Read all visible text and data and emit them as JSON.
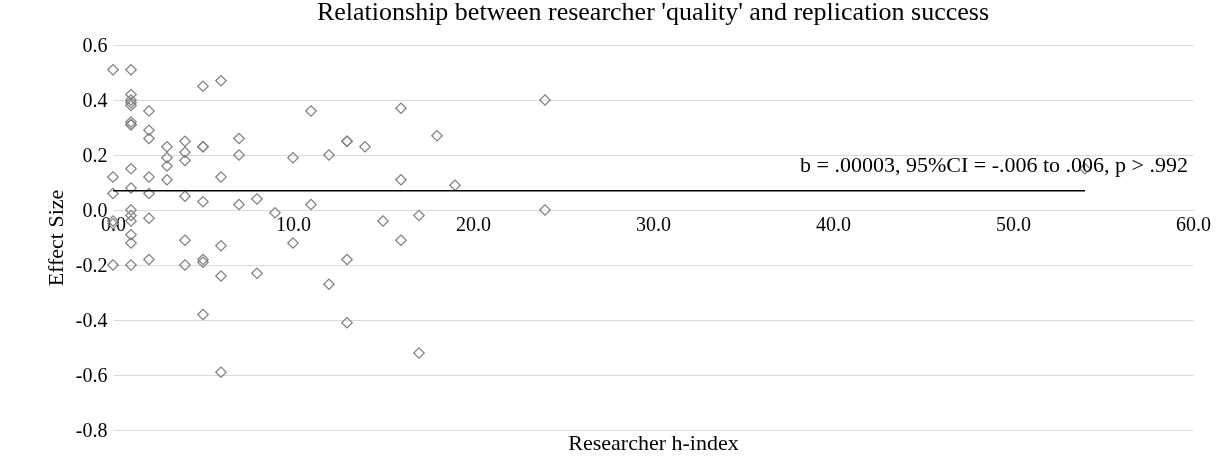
{
  "chart_data": {
    "type": "scatter",
    "title": "Relationship between researcher 'quality' and replication success",
    "xlabel": "Researcher h-index",
    "ylabel": "Effect Size",
    "xlim": [
      0,
      60
    ],
    "xticks": [
      {
        "value": 0,
        "label": "0.0"
      },
      {
        "value": 10,
        "label": "10.0"
      },
      {
        "value": 20,
        "label": "20.0"
      },
      {
        "value": 30,
        "label": "30.0"
      },
      {
        "value": 40,
        "label": "40.0"
      },
      {
        "value": 50,
        "label": "50.0"
      },
      {
        "value": 60,
        "label": "60.0"
      }
    ],
    "ylim": [
      -0.8,
      0.6
    ],
    "yticks": [
      {
        "value": -0.8,
        "label": "-0.8"
      },
      {
        "value": -0.6,
        "label": "-0.6"
      },
      {
        "value": -0.4,
        "label": "-0.4"
      },
      {
        "value": -0.2,
        "label": "-0.2"
      },
      {
        "value": 0,
        "label": "0.0"
      },
      {
        "value": 0.2,
        "label": "0.2"
      },
      {
        "value": 0.4,
        "label": "0.4"
      },
      {
        "value": 0.6,
        "label": "0.6"
      }
    ],
    "grid": "y",
    "annotations": [
      "b = .00003, 95%CI = -.006 to .006, p > .992"
    ],
    "series": [
      {
        "color": "#7f7f7f",
        "marker": "diamond",
        "x": [
          0,
          0,
          0,
          0,
          0,
          0,
          1,
          1,
          1,
          1,
          1,
          1,
          1,
          1,
          1,
          1,
          1,
          1,
          1,
          1,
          1,
          1,
          2,
          2,
          2,
          2,
          2,
          2,
          2,
          3,
          3,
          3,
          3,
          4,
          4,
          4,
          4,
          4,
          4,
          5,
          5,
          5,
          5,
          5,
          5,
          5,
          6,
          6,
          6,
          6,
          6,
          7,
          7,
          7,
          8,
          8,
          9,
          10,
          10,
          11,
          11,
          12,
          12,
          13,
          13,
          13,
          13,
          14,
          15,
          16,
          16,
          16,
          17,
          17,
          18,
          19,
          24,
          24,
          54
        ],
        "values": [
          0.51,
          0.12,
          0.06,
          -0.04,
          -0.05,
          -0.2,
          0.51,
          0.42,
          0.4,
          0.39,
          0.38,
          0.32,
          0.31,
          0.15,
          0.08,
          0.0,
          -0.02,
          -0.04,
          -0.09,
          -0.12,
          -0.2,
          0.31,
          0.36,
          0.29,
          0.26,
          0.12,
          0.06,
          -0.03,
          -0.18,
          0.23,
          0.19,
          0.16,
          0.11,
          0.25,
          0.21,
          0.18,
          0.05,
          -0.11,
          -0.2,
          0.45,
          0.23,
          0.23,
          0.03,
          -0.18,
          -0.19,
          -0.38,
          0.47,
          0.12,
          -0.13,
          -0.24,
          -0.59,
          0.26,
          0.2,
          0.02,
          0.04,
          -0.23,
          -0.01,
          0.19,
          -0.12,
          0.36,
          0.02,
          0.2,
          -0.27,
          0.25,
          -0.18,
          -0.41,
          0.25,
          0.23,
          -0.04,
          0.37,
          0.11,
          -0.11,
          -0.02,
          -0.52,
          0.27,
          0.09,
          0.4,
          0.0,
          0.15
        ]
      },
      {
        "type": "line",
        "marker": "none",
        "color": "#000000",
        "x": [
          0,
          54
        ],
        "values": [
          0.07,
          0.07
        ]
      }
    ]
  }
}
